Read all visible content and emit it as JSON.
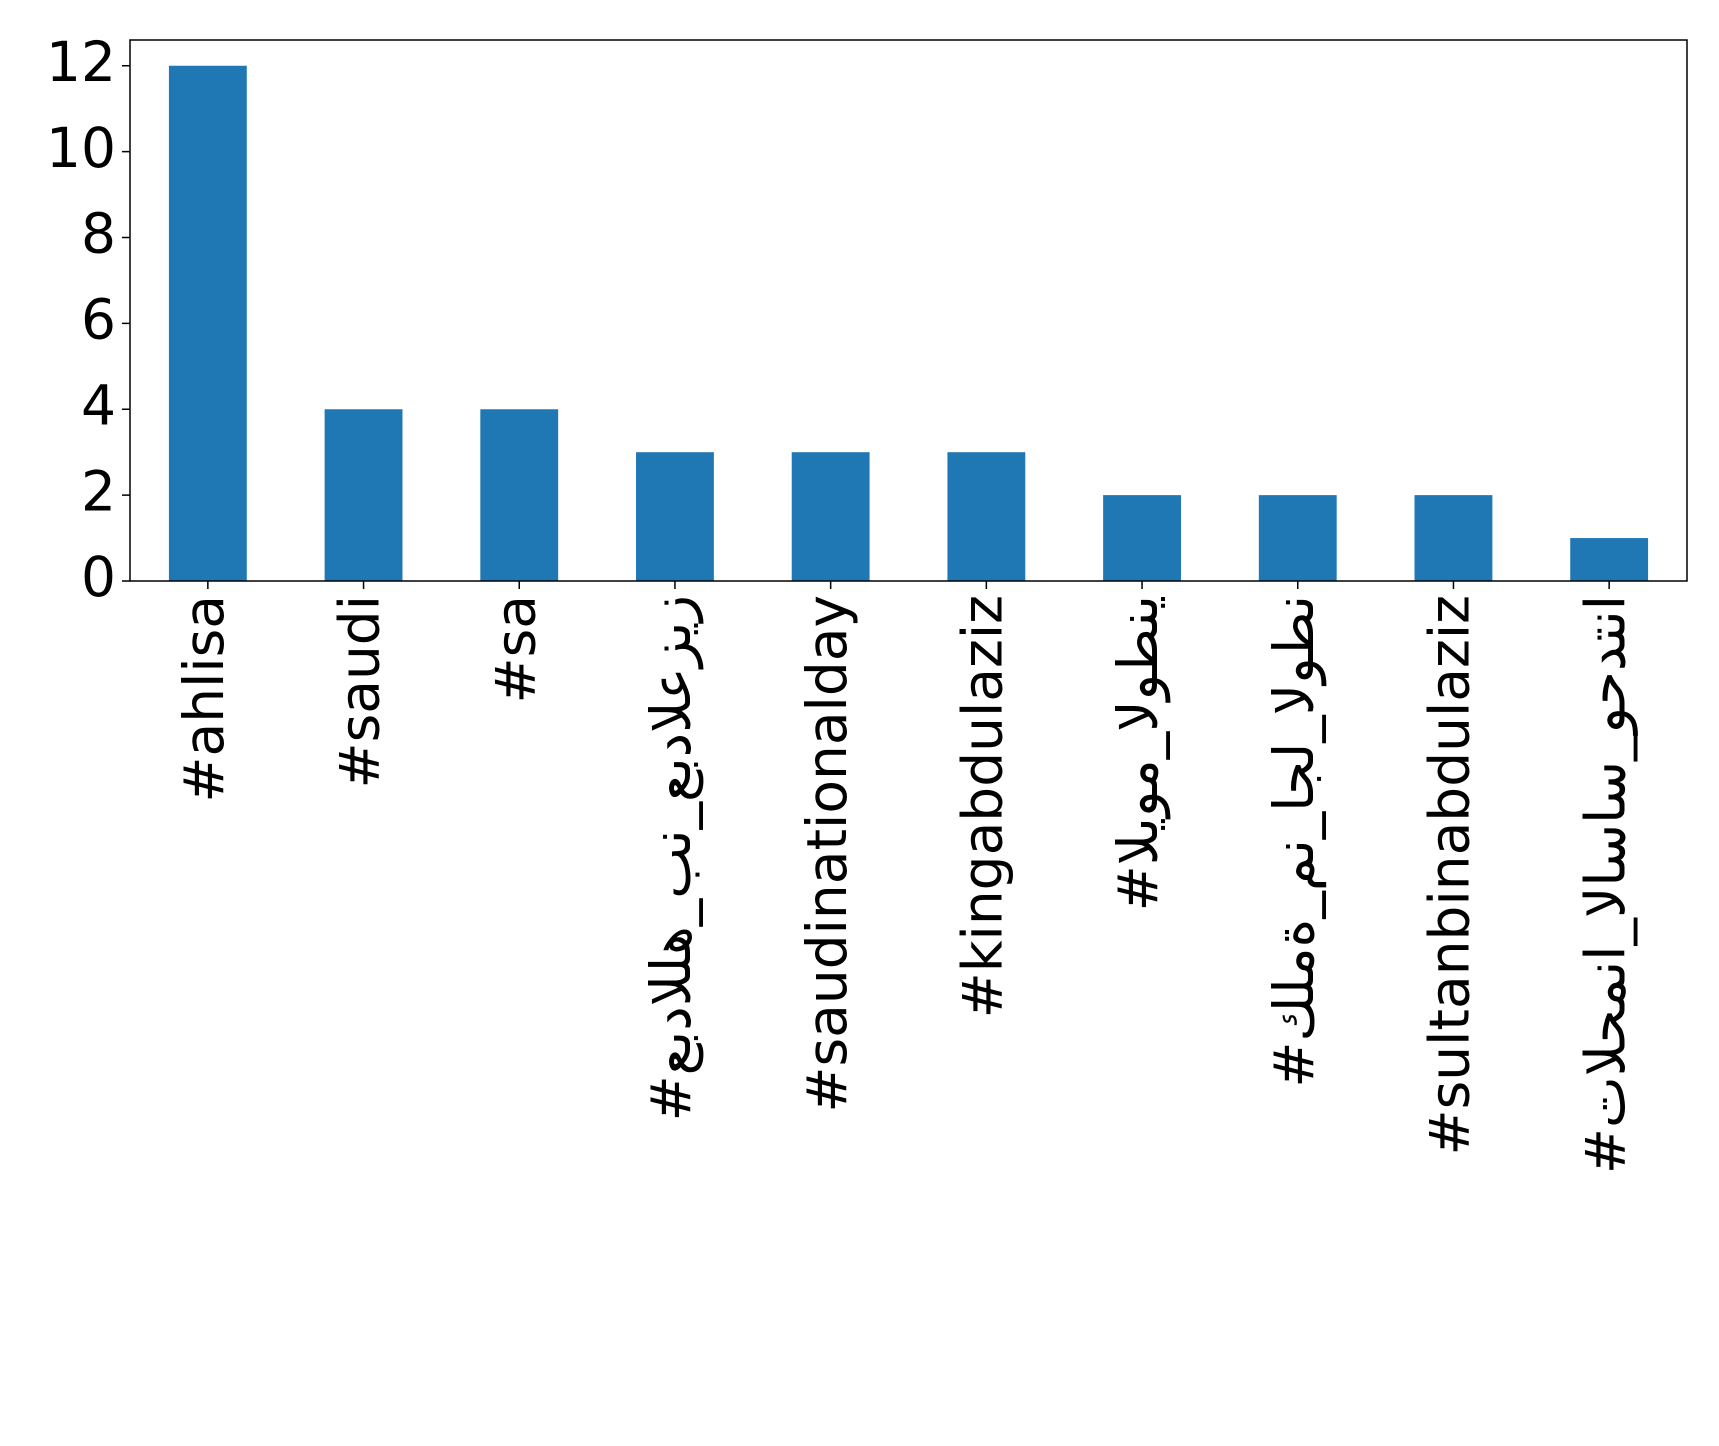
{
  "chart_data": {
    "type": "bar",
    "categories": [
      "#ahlisa",
      "#saudi",
      "#sa",
      "#عبدالله_بن_عبدالعزيز",
      "#saudinationalday",
      "#kingabdulaziz",
      "#اليوم_الوطني",
      "#كلمة_من_اجل_الوطن",
      "#sultanbinabdulaziz",
      "#تالحمنا_الاساس_وحدتنا"
    ],
    "values": [
      12,
      4,
      4,
      3,
      3,
      3,
      2,
      2,
      2,
      1
    ],
    "color": "#1f77b4",
    "ylim": [
      0,
      12.6
    ],
    "yticks": [
      0,
      2,
      4,
      6,
      8,
      10,
      12
    ],
    "grid": false
  }
}
